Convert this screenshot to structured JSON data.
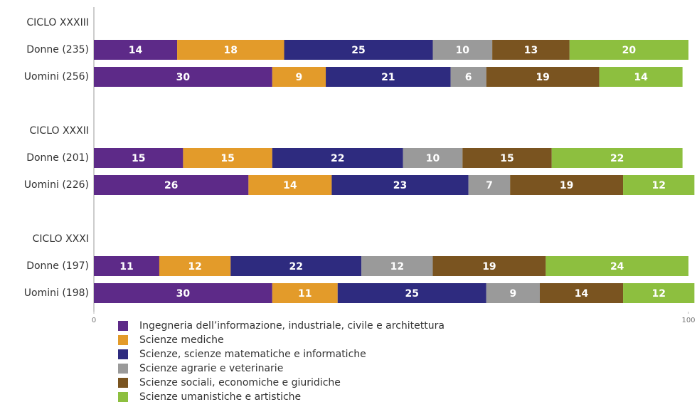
{
  "chart_data": {
    "type": "stacked-bar-horizontal",
    "categories": [
      "CICLO XXXIII",
      "Donne (235)",
      "Uomini (256)",
      null,
      "CICLO XXXII",
      "Donne (201)",
      "Uomini (226)",
      null,
      "CICLO XXXI",
      "Donne (197)",
      "Uomini (198)"
    ],
    "series": [
      {
        "name": "Ingegneria dell’informazione, industriale, civile e architettura",
        "color": "#5d2a88",
        "values": [
          null,
          14,
          30,
          null,
          null,
          15,
          26,
          null,
          null,
          11,
          30
        ]
      },
      {
        "name": "Scienze mediche",
        "color": "#e39b2a",
        "values": [
          null,
          18,
          9,
          null,
          null,
          15,
          14,
          null,
          null,
          12,
          11
        ]
      },
      {
        "name": "Scienze, scienze matematiche e informatiche",
        "color": "#2e2b7f",
        "values": [
          null,
          25,
          21,
          null,
          null,
          22,
          23,
          null,
          null,
          22,
          25
        ]
      },
      {
        "name": "Scienze agrarie e veterinarie",
        "color": "#9a9a9a",
        "values": [
          null,
          10,
          6,
          null,
          null,
          10,
          7,
          null,
          null,
          12,
          9
        ]
      },
      {
        "name": "Scienze sociali, economiche e giuridiche",
        "color": "#7a5420",
        "values": [
          null,
          13,
          19,
          null,
          null,
          15,
          19,
          null,
          null,
          19,
          14
        ]
      },
      {
        "name": "Scienze umanistiche e artistiche",
        "color": "#8dbf3f",
        "values": [
          null,
          20,
          14,
          null,
          null,
          22,
          12,
          null,
          null,
          24,
          12
        ]
      }
    ],
    "xlim": [
      0,
      100
    ],
    "xticks": [
      0,
      100
    ],
    "legend": "bottom"
  }
}
